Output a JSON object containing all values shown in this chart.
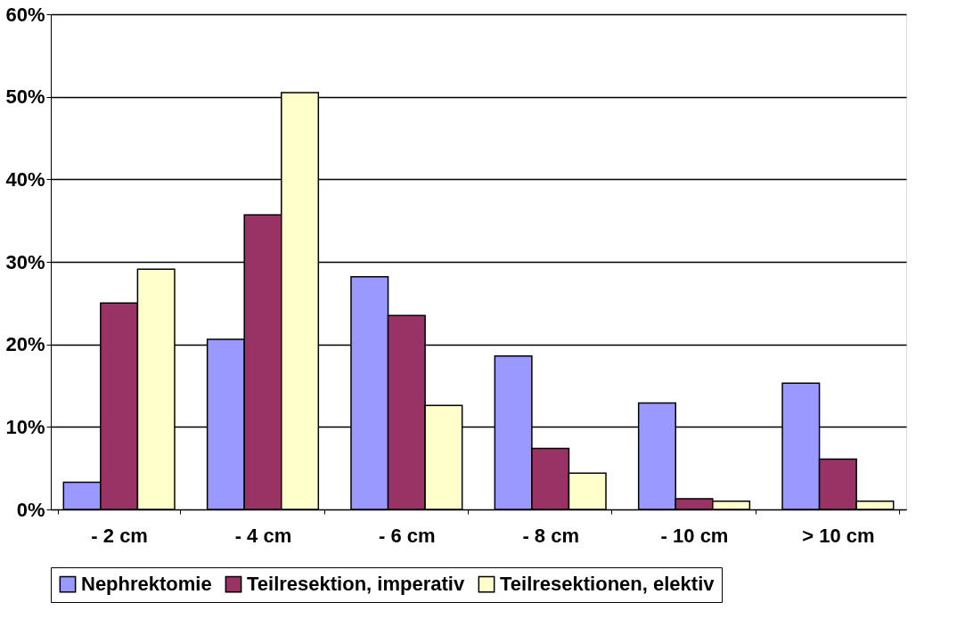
{
  "chart_data": {
    "type": "bar",
    "categories": [
      "- 2 cm",
      "- 4 cm",
      "- 6 cm",
      "- 8 cm",
      "- 10 cm",
      "> 10 cm"
    ],
    "series": [
      {
        "name": "Nephrektomie",
        "color": "#9999ff",
        "values": [
          3.3,
          20.6,
          28.2,
          18.6,
          12.9,
          15.3
        ]
      },
      {
        "name": "Teilresektion, imperativ",
        "color": "#993366",
        "values": [
          25,
          35.7,
          23.5,
          7.4,
          1.3,
          6.1
        ]
      },
      {
        "name": "Teilresektionen, elektiv",
        "color": "#ffffcc",
        "values": [
          29.1,
          50.5,
          12.6,
          4.4,
          1.0,
          1.0
        ]
      }
    ],
    "ylim": [
      0,
      60
    ],
    "yticks": [
      {
        "value": 0,
        "label": "0%"
      },
      {
        "value": 10,
        "label": "10%"
      },
      {
        "value": 20,
        "label": "20%"
      },
      {
        "value": 30,
        "label": "30%"
      },
      {
        "value": 40,
        "label": "40%"
      },
      {
        "value": 50,
        "label": "50%"
      },
      {
        "value": 60,
        "label": "60%"
      }
    ],
    "grid": "y",
    "legend": "bottom"
  }
}
